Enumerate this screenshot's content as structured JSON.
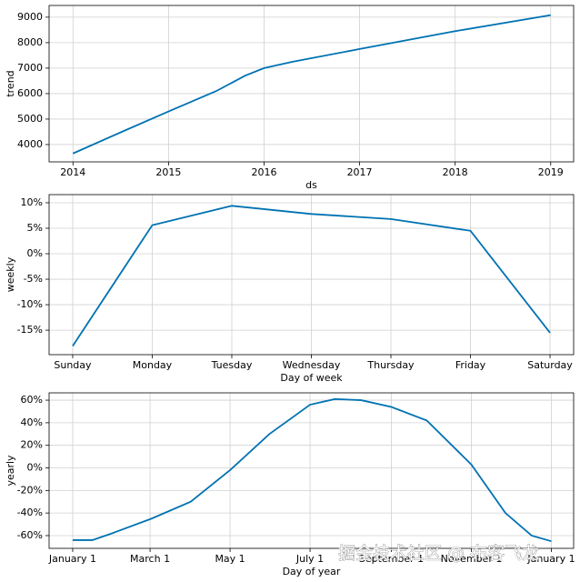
{
  "chart_data": [
    {
      "type": "line",
      "xlabel": "ds",
      "ylabel": "trend",
      "color": "#0072B2",
      "grid": true,
      "x": [
        2014,
        2014.5,
        2015,
        2015.5,
        2015.8,
        2016,
        2016.3,
        2017,
        2018,
        2019
      ],
      "values": [
        3650,
        4480,
        5300,
        6100,
        6700,
        7000,
        7250,
        7750,
        8450,
        9080
      ],
      "xlim": [
        2013.75,
        2019.24
      ],
      "xticks": [
        2014,
        2015,
        2016,
        2017,
        2018,
        2019
      ],
      "ylim": [
        3320,
        9460
      ],
      "yticks": [
        4000,
        5000,
        6000,
        7000,
        8000,
        9000
      ]
    },
    {
      "type": "line",
      "xlabel": "Day of week",
      "ylabel": "weekly",
      "color": "#0072B2",
      "grid": true,
      "categories": [
        "Sunday",
        "Monday",
        "Tuesday",
        "Wednesday",
        "Thursday",
        "Friday",
        "Saturday"
      ],
      "values": [
        -18.1,
        5.6,
        9.4,
        7.8,
        6.8,
        4.5,
        -15.5
      ],
      "ylim": [
        -19.8,
        11.6
      ],
      "yticks": [
        {
          "value": -15,
          "label": "-15%"
        },
        {
          "value": -10,
          "label": "-10%"
        },
        {
          "value": -5,
          "label": "-5%"
        },
        {
          "value": 0,
          "label": "0%"
        },
        {
          "value": 5,
          "label": "5%"
        },
        {
          "value": 10,
          "label": "10%"
        }
      ]
    },
    {
      "type": "line",
      "xlabel": "Day of year",
      "ylabel": "yearly",
      "color": "#0072B2",
      "grid": true,
      "x": [
        0,
        15,
        30,
        60,
        90,
        120,
        150,
        181,
        200,
        220,
        243,
        270,
        304,
        330,
        350,
        365
      ],
      "values": [
        -64,
        -64,
        -58,
        -45,
        -30,
        -2,
        30,
        56,
        61,
        60,
        54,
        42,
        3,
        -40,
        -60,
        -65
      ],
      "xlim": [
        -18,
        382
      ],
      "xticks": [
        {
          "value": 0,
          "label": "January 1"
        },
        {
          "value": 59,
          "label": "March 1"
        },
        {
          "value": 120,
          "label": "May 1"
        },
        {
          "value": 181,
          "label": "July 1"
        },
        {
          "value": 243,
          "label": "September 1"
        },
        {
          "value": 304,
          "label": "November 1"
        },
        {
          "value": 365,
          "label": "January 1"
        }
      ],
      "ylim": [
        -71.3,
        66.5
      ],
      "yticks": [
        {
          "value": -60,
          "label": "-60%"
        },
        {
          "value": -40,
          "label": "-40%"
        },
        {
          "value": -20,
          "label": "-20%"
        },
        {
          "value": 0,
          "label": "0%"
        },
        {
          "value": 20,
          "label": "20%"
        },
        {
          "value": 40,
          "label": "40%"
        },
        {
          "value": 60,
          "label": "60%"
        }
      ]
    }
  ],
  "watermark": "掘金技术社区 @ 布客飞龙"
}
